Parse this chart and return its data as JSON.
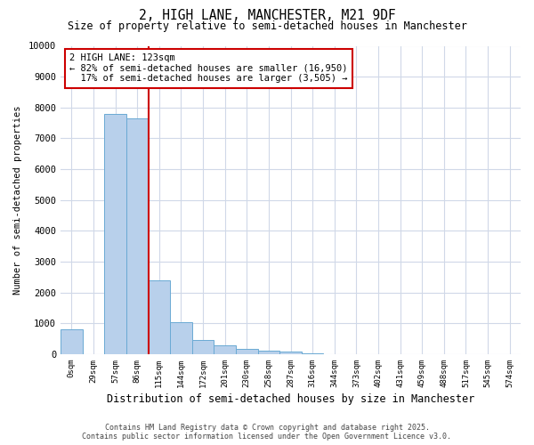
{
  "title": "2, HIGH LANE, MANCHESTER, M21 9DF",
  "subtitle": "Size of property relative to semi-detached houses in Manchester",
  "xlabel": "Distribution of semi-detached houses by size in Manchester",
  "ylabel": "Number of semi-detached properties",
  "bar_labels": [
    "0sqm",
    "29sqm",
    "57sqm",
    "86sqm",
    "115sqm",
    "144sqm",
    "172sqm",
    "201sqm",
    "230sqm",
    "258sqm",
    "287sqm",
    "316sqm",
    "344sqm",
    "373sqm",
    "402sqm",
    "431sqm",
    "459sqm",
    "488sqm",
    "517sqm",
    "545sqm",
    "574sqm"
  ],
  "bar_values": [
    800,
    0,
    7800,
    7650,
    2380,
    1050,
    460,
    300,
    175,
    125,
    80,
    30,
    10,
    0,
    0,
    0,
    0,
    0,
    0,
    0,
    0
  ],
  "bar_color": "#b8d0eb",
  "bar_edge_color": "#6aaad4",
  "pct_smaller": 82,
  "pct_larger": 17,
  "count_smaller": 16950,
  "count_larger": 3505,
  "vline_color": "#cc0000",
  "annotation_box_color": "#cc0000",
  "vline_pos": 4.0,
  "ylim": [
    0,
    10000
  ],
  "yticks": [
    0,
    1000,
    2000,
    3000,
    4000,
    5000,
    6000,
    7000,
    8000,
    9000,
    10000
  ],
  "footer_line1": "Contains HM Land Registry data © Crown copyright and database right 2025.",
  "footer_line2": "Contains public sector information licensed under the Open Government Licence v3.0.",
  "background_color": "#ffffff",
  "grid_color": "#d0d8e8"
}
